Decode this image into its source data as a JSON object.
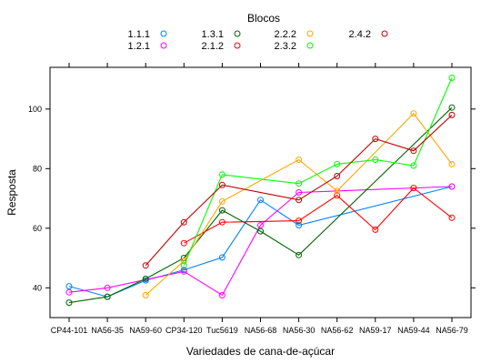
{
  "chart_data": {
    "type": "line",
    "legend": {
      "title": "Blocos",
      "placement": "top",
      "entries": [
        {
          "name": "1.1.1",
          "color": "#0080ff"
        },
        {
          "name": "1.2.1",
          "color": "#ff00ff"
        },
        {
          "name": "1.3.1",
          "color": "#006400"
        },
        {
          "name": "2.1.2",
          "color": "#ff0000"
        },
        {
          "name": "2.2.2",
          "color": "#ffa500"
        },
        {
          "name": "2.3.2",
          "color": "#00ff00"
        },
        {
          "name": "2.4.2",
          "color": "#c00000"
        }
      ]
    },
    "xlabel": "Variedades de cana-de-açúcar",
    "ylabel": "Resposta",
    "categories": [
      "CP44-101",
      "NA56-35",
      "NA59-60",
      "CP34-120",
      "Tuc5619",
      "NA56-68",
      "NA56-30",
      "NA56-62",
      "NA59-17",
      "NA59-44",
      "NA56-79"
    ],
    "ylim": [
      30,
      114
    ],
    "yticks": [
      40,
      60,
      80,
      100
    ],
    "grid": false,
    "series": [
      {
        "name": "1.1.1",
        "color": "#0080ff",
        "points": [
          [
            "CP44-101",
            40.5
          ],
          [
            "NA56-35",
            37.0
          ],
          [
            "NA59-60",
            42.5
          ],
          [
            "CP34-120",
            46.0
          ],
          [
            "Tuc5619",
            50.2
          ],
          [
            "NA56-68",
            69.5
          ],
          [
            "NA56-30",
            61.0
          ],
          [
            "NA56-79",
            74.0
          ]
        ]
      },
      {
        "name": "1.2.1",
        "color": "#ff00ff",
        "points": [
          [
            "CP44-101",
            38.5
          ],
          [
            "NA56-35",
            40.0
          ],
          [
            "CP34-120",
            45.5
          ],
          [
            "Tuc5619",
            37.5
          ],
          [
            "NA56-68",
            61.0
          ],
          [
            "NA56-30",
            72.0
          ],
          [
            "NA56-79",
            74.0
          ]
        ]
      },
      {
        "name": "1.3.1",
        "color": "#006400",
        "points": [
          [
            "CP44-101",
            35.0
          ],
          [
            "NA56-35",
            37.0
          ],
          [
            "NA59-60",
            43.0
          ],
          [
            "CP34-120",
            50.0
          ],
          [
            "Tuc5619",
            66.0
          ],
          [
            "NA56-68",
            59.0
          ],
          [
            "NA56-30",
            51.0
          ],
          [
            "NA56-79",
            100.5
          ]
        ]
      },
      {
        "name": "2.1.2",
        "color": "#ff0000",
        "points": [
          [
            "CP34-120",
            55.0
          ],
          [
            "Tuc5619",
            62.0
          ],
          [
            "NA56-30",
            62.5
          ],
          [
            "NA56-62",
            71.0
          ],
          [
            "NA59-17",
            59.5
          ],
          [
            "NA59-44",
            73.5
          ],
          [
            "NA56-79",
            63.5
          ]
        ]
      },
      {
        "name": "2.2.2",
        "color": "#ffa500",
        "points": [
          [
            "NA59-60",
            37.5
          ],
          [
            "CP34-120",
            49.0
          ],
          [
            "Tuc5619",
            69.0
          ],
          [
            "NA56-30",
            83.0
          ],
          [
            "NA56-62",
            72.5
          ],
          [
            "NA59-44",
            98.5
          ],
          [
            "NA56-79",
            81.5
          ]
        ]
      },
      {
        "name": "2.3.2",
        "color": "#00ff00",
        "points": [
          [
            "CP34-120",
            47.5
          ],
          [
            "Tuc5619",
            78.0
          ],
          [
            "NA56-30",
            75.0
          ],
          [
            "NA56-62",
            81.5
          ],
          [
            "NA59-17",
            83.0
          ],
          [
            "NA59-44",
            81.0
          ],
          [
            "NA56-79",
            110.5
          ]
        ]
      },
      {
        "name": "2.4.2",
        "color": "#c00000",
        "points": [
          [
            "NA59-60",
            47.5
          ],
          [
            "CP34-120",
            62.0
          ],
          [
            "Tuc5619",
            74.5
          ],
          [
            "NA56-30",
            69.5
          ],
          [
            "NA56-62",
            77.5
          ],
          [
            "NA59-17",
            90.0
          ],
          [
            "NA59-44",
            86.0
          ],
          [
            "NA56-79",
            98.0
          ]
        ]
      }
    ]
  }
}
